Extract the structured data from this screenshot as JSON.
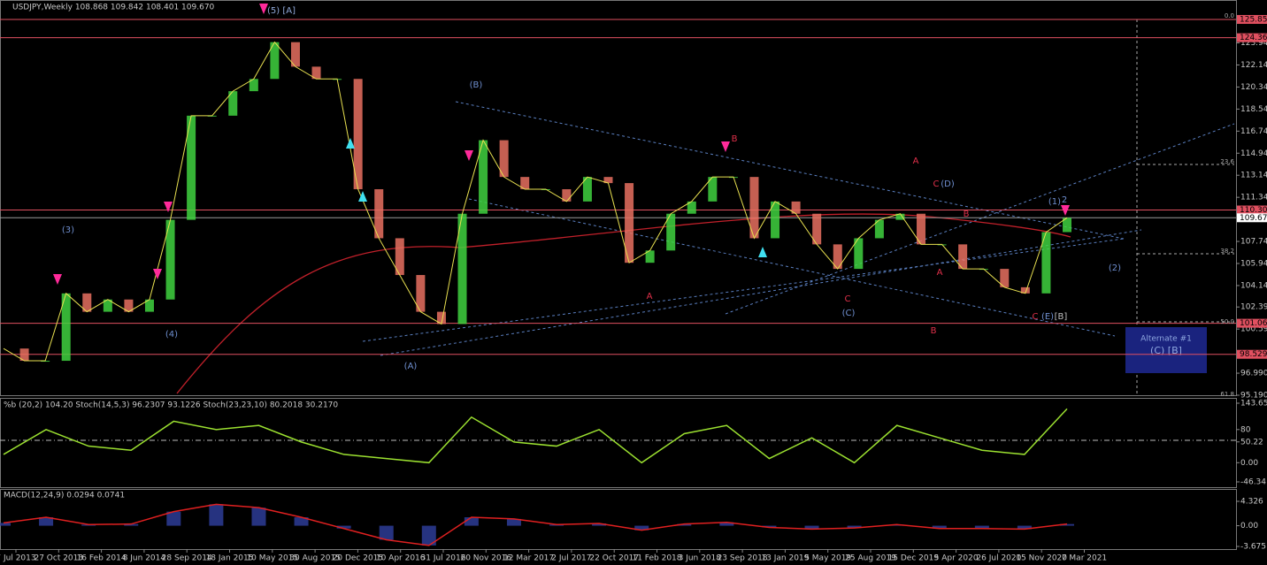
{
  "header": "USDJPY,Weekly  108.868 109.842 108.401 109.670",
  "price_panel": {
    "ylim": [
      95.19,
      127.44
    ],
    "yticks": [
      {
        "value": 123.94,
        "label": "123.940"
      },
      {
        "value": 122.14,
        "label": "122.140"
      },
      {
        "value": 120.34,
        "label": "120.340"
      },
      {
        "value": 118.54,
        "label": "118.540"
      },
      {
        "value": 116.74,
        "label": "116.740"
      },
      {
        "value": 114.94,
        "label": "114.940"
      },
      {
        "value": 113.14,
        "label": "113.140"
      },
      {
        "value": 111.34,
        "label": "111.340"
      },
      {
        "value": 107.74,
        "label": "107.740"
      },
      {
        "value": 105.94,
        "label": "105.940"
      },
      {
        "value": 104.14,
        "label": "104.140"
      },
      {
        "value": 102.39,
        "label": "102.390"
      },
      {
        "value": 100.59,
        "label": "100.590"
      },
      {
        "value": 96.99,
        "label": "96.990"
      },
      {
        "value": 95.19,
        "label": "95.190"
      }
    ],
    "levels": [
      125.855,
      124.363,
      110.305,
      101.063,
      98.529
    ],
    "current": {
      "value": 109.67,
      "label": "109.670"
    },
    "closes": [
      99,
      98,
      98,
      103.5,
      102,
      103,
      102,
      103,
      109.5,
      118,
      118,
      120,
      121,
      124,
      122,
      121,
      121,
      112,
      108,
      105,
      102,
      101,
      110,
      116,
      113,
      112,
      112,
      111,
      113,
      112.5,
      106,
      107,
      110,
      111,
      113,
      113,
      108,
      111,
      110,
      107.5,
      105.5,
      108,
      109.5,
      110,
      107.5,
      107.5,
      105.5,
      105.5,
      104,
      103.5,
      108.5,
      109.67
    ]
  },
  "dates": [
    "7 Jul 2013",
    "27 Oct 2013",
    "16 Feb 2014",
    "8 Jun 2014",
    "28 Sep 2014",
    "18 Jan 2015",
    "10 May 2015",
    "30 Aug 2015",
    "20 Dec 2015",
    "10 Apr 2016",
    "31 Jul 2016",
    "20 Nov 2016",
    "12 Mar 2017",
    "2 Jul 2017",
    "22 Oct 2017",
    "11 Feb 2018",
    "3 Jun 2018",
    "23 Sep 2018",
    "13 Jan 2019",
    "5 May 2019",
    "25 Aug 2019",
    "15 Dec 2019",
    "5 Apr 2020",
    "26 Jul 2020",
    "15 Nov 2020",
    "7 Mar 2021"
  ],
  "waves": [
    {
      "text": "(5)  [A]",
      "color": "#8fa8d8"
    },
    {
      "text": "(B)",
      "color": "#6f8fd0"
    },
    {
      "text": "(3)",
      "color": "#6f8fd0"
    },
    {
      "text": "(4)",
      "color": "#6f8fd0"
    },
    {
      "text": "(A)",
      "color": "#6f8fd0"
    },
    {
      "text": "B",
      "color": "#e0304a"
    },
    {
      "text": "A",
      "color": "#e0304a"
    },
    {
      "text": "(C)",
      "color": "#6f8fd0"
    },
    {
      "text": "C",
      "color": "#e0304a"
    },
    {
      "text": "A",
      "color": "#e0304a"
    },
    {
      "text": "C",
      "color": "#e0304a"
    },
    {
      "text": "(D)",
      "color": "#6f8fd0"
    },
    {
      "text": "B",
      "color": "#e0304a"
    },
    {
      "text": "A",
      "color": "#e0304a"
    },
    {
      "text": "B",
      "color": "#e0304a"
    },
    {
      "text": "(1)",
      "color": "#6f8fd0"
    },
    {
      "text": "2",
      "color": "#6f8fd0"
    },
    {
      "text": "(2)",
      "color": "#6f8fd0"
    },
    {
      "text": "C",
      "color": "#e0304a"
    },
    {
      "text": "(E)",
      "color": "#6f8fd0"
    },
    {
      "text": "[B]",
      "color": "#c0c0c0"
    }
  ],
  "fib_labels": [
    "0.0",
    "23.6",
    "38.2",
    "50.0",
    "61.8"
  ],
  "alternate": {
    "title": "Alternate #1",
    "label": "(C) [B]"
  },
  "osc_panel": {
    "header": "%b (20,2) 104.20  Stoch(14,5,3) 96.2307 93.1226  Stoch(23,23,10) 80.2018 30.2170",
    "ylim": [
      -46.34,
      143.65
    ],
    "yticks": [
      143.65,
      80,
      50.22,
      {
        "value": 0,
        "label": "0.00"
      },
      -46.34
    ],
    "values": [
      20,
      80,
      40,
      30,
      100,
      80,
      90,
      50,
      20,
      10,
      0,
      110,
      50,
      40,
      80,
      0,
      70,
      90,
      10,
      60,
      0,
      90,
      60,
      30,
      20,
      130
    ]
  },
  "macd_panel": {
    "header": "MACD(12,24,9) 0.0294 0.0741",
    "ylim": [
      -3.6751,
      4.326
    ],
    "yticks": [
      4.326,
      {
        "value": 0,
        "label": "0.00"
      },
      -3.6751
    ],
    "values": [
      0.5,
      1.5,
      0.2,
      0.3,
      2.5,
      3.8,
      3.2,
      1.5,
      -0.5,
      -2.5,
      -3.5,
      1.5,
      1.2,
      0.2,
      0.4,
      -0.8,
      0.3,
      0.6,
      -0.3,
      -0.6,
      -0.4,
      0.2,
      -0.5,
      -0.5,
      -0.6,
      0.3
    ]
  }
}
